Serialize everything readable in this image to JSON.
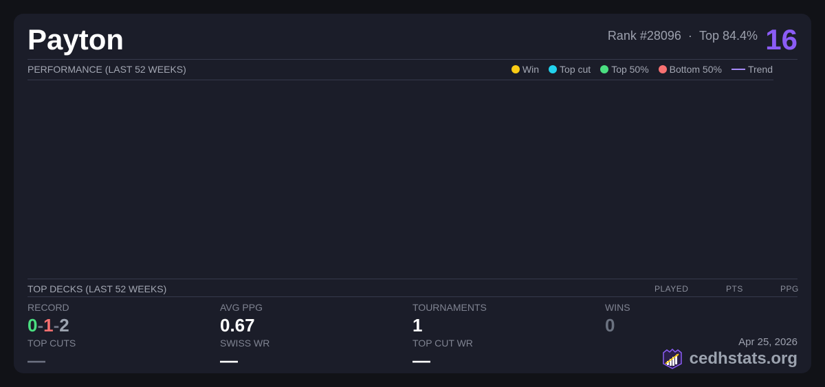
{
  "player": {
    "name": "Payton",
    "rank": "Rank #28096",
    "separator": "·",
    "top": "Top 84.4%",
    "number": "16"
  },
  "performance": {
    "title": "PERFORMANCE (LAST 52 WEEKS)",
    "legend": [
      {
        "label": "Win",
        "color": "#facc15"
      },
      {
        "label": "Top cut",
        "color": "#22d3ee"
      },
      {
        "label": "Top 50%",
        "color": "#4ade80"
      },
      {
        "label": "Bottom 50%",
        "color": "#f87171"
      }
    ],
    "trend_label": "Trend",
    "trend_color": "#a78bfa"
  },
  "top_decks": {
    "title": "TOP DECKS (LAST 52 WEEKS)",
    "columns": [
      "PLAYED",
      "PTS",
      "PPG"
    ]
  },
  "stats": {
    "record_label": "RECORD",
    "record": {
      "wins": "0",
      "losses": "1",
      "draws": "2",
      "sep": "-"
    },
    "avg_ppg_label": "AVG PPG",
    "avg_ppg": "0.67",
    "tournaments_label": "TOURNAMENTS",
    "tournaments": "1",
    "wins_label": "WINS",
    "wins": "0",
    "top_cuts_label": "TOP CUTS",
    "top_cuts": "—",
    "swiss_wr_label": "SWISS WR",
    "swiss_wr": "—",
    "top_cut_wr_label": "TOP CUT WR",
    "top_cut_wr": "—"
  },
  "footer": {
    "date": "Apr 25, 2026",
    "brand": "cedhstats.org",
    "logo_icon": "crown-chart-icon"
  }
}
